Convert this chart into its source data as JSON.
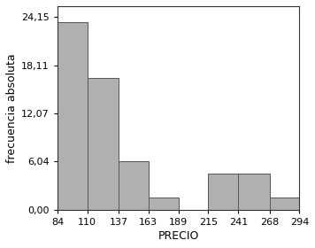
{
  "bin_edges": [
    84,
    110,
    137,
    163,
    189,
    215,
    241,
    268,
    294
  ],
  "bar_heights": [
    23.5,
    16.5,
    6.04,
    1.5,
    0,
    4.5,
    4.5,
    1.5
  ],
  "bar_color": "#b0b0b0",
  "bar_edgecolor": "#555555",
  "xlabel": "PRECIO",
  "ylabel": "frecuencia absoluta",
  "yticks": [
    0.0,
    6.04,
    12.07,
    18.11,
    24.15
  ],
  "ytick_labels": [
    "0,00",
    "6,04",
    "12,07",
    "18,11",
    "24,15"
  ],
  "xtick_labels": [
    "84",
    "110",
    "137",
    "163",
    "189",
    "215",
    "241",
    "268",
    "294"
  ],
  "ylim": [
    0,
    25.5
  ],
  "xlim": [
    84,
    294
  ],
  "background_color": "#ffffff",
  "title_fontsize": 9,
  "label_fontsize": 9,
  "tick_fontsize": 8
}
